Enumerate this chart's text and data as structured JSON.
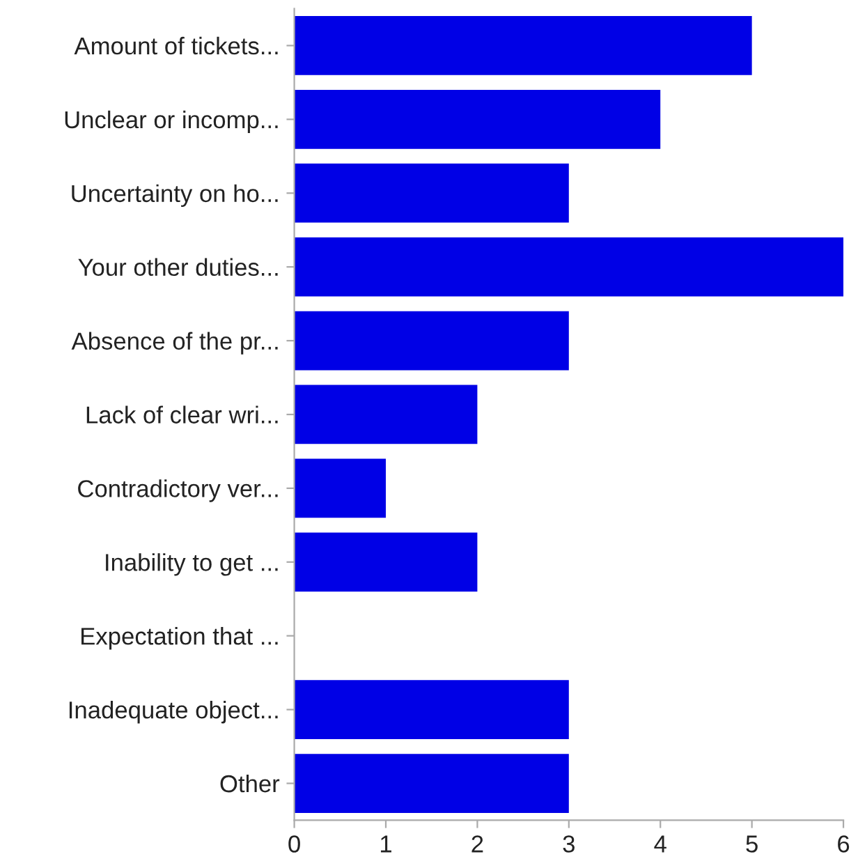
{
  "chart_data": {
    "type": "bar",
    "orientation": "horizontal",
    "categories": [
      "Amount of tickets...",
      "Unclear or incomp...",
      "Uncertainty on ho...",
      "Your other duties...",
      "Absence of the pr...",
      "Lack of clear wri...",
      "Contradictory ver...",
      "Inability to get ...",
      "Expectation that ...",
      "Inadequate object...",
      "Other"
    ],
    "values": [
      5,
      4,
      3,
      6,
      3,
      2,
      1,
      2,
      0,
      3,
      3
    ],
    "color": "#0000e6",
    "xlim": [
      0,
      6
    ],
    "xticks": [
      0,
      1,
      2,
      3,
      4,
      5,
      6
    ],
    "grid": false,
    "legend": false
  }
}
